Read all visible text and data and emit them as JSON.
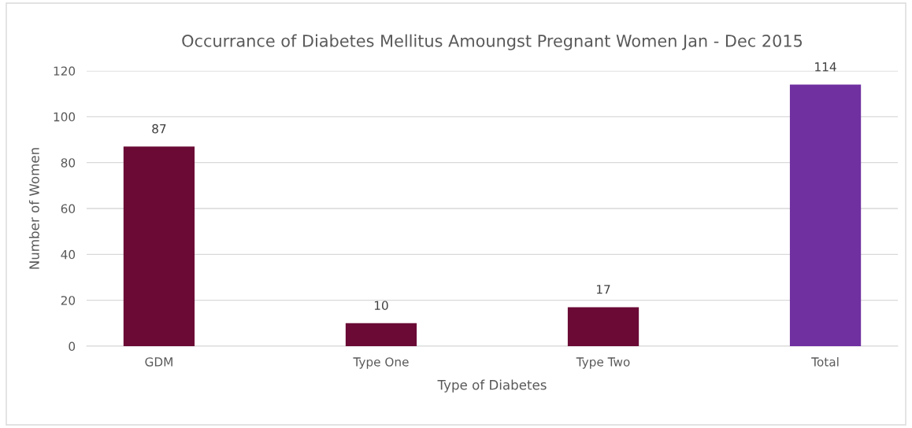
{
  "chart_data": {
    "type": "bar",
    "title": "Occurrance of Diabetes Mellitus Amoungst Pregnant Women Jan - Dec 2015",
    "xlabel": "Type of Diabetes",
    "ylabel": "Number of Women",
    "categories": [
      "GDM",
      "Type One",
      "Type Two",
      "Total"
    ],
    "values": [
      87,
      10,
      17,
      114
    ],
    "colors": [
      "#6a0a35",
      "#6a0a35",
      "#6a0a35",
      "#7030a0"
    ],
    "ylim": [
      0,
      120
    ],
    "yticks": [
      0,
      20,
      40,
      60,
      80,
      100,
      120
    ],
    "grid": "y",
    "data_labels": true
  }
}
